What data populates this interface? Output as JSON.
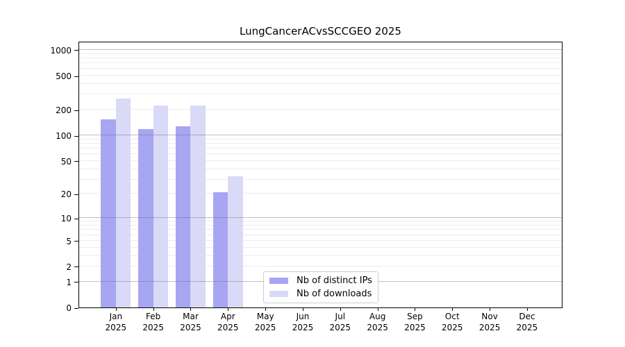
{
  "chart_data": {
    "type": "bar",
    "title": "LungCancerACvsSCCGEO 2025",
    "x_ticks": [
      {
        "label": "Jan",
        "year": "2025"
      },
      {
        "label": "Feb",
        "year": "2025"
      },
      {
        "label": "Mar",
        "year": "2025"
      },
      {
        "label": "Apr",
        "year": "2025"
      },
      {
        "label": "May",
        "year": "2025"
      },
      {
        "label": "Jun",
        "year": "2025"
      },
      {
        "label": "Jul",
        "year": "2025"
      },
      {
        "label": "Aug",
        "year": "2025"
      },
      {
        "label": "Sep",
        "year": "2025"
      },
      {
        "label": "Oct",
        "year": "2025"
      },
      {
        "label": "Nov",
        "year": "2025"
      },
      {
        "label": "Dec",
        "year": "2025"
      }
    ],
    "y_ticks": [
      1000,
      500,
      200,
      100,
      50,
      20,
      10,
      5,
      2,
      1,
      0
    ],
    "y_scale": "log10(1+x)",
    "ylim": [
      0,
      1270
    ],
    "grid": "on",
    "legend_position": "lower center",
    "series": [
      {
        "name": "Nb of distinct IPs",
        "color": "#a6a6f2",
        "values": [
          155,
          119,
          127,
          21,
          0,
          0,
          0,
          0,
          0,
          0,
          0,
          0
        ]
      },
      {
        "name": "Nb of downloads",
        "color": "#d9d9f8",
        "values": [
          273,
          223,
          225,
          33,
          0,
          0,
          0,
          0,
          0,
          0,
          0,
          0
        ]
      }
    ]
  },
  "colors": {
    "axis": "#000000",
    "major_grid": "#6e6e6e",
    "minor_grid": "#ececec",
    "background": "#ffffff",
    "legend_border": "#cccccc"
  }
}
